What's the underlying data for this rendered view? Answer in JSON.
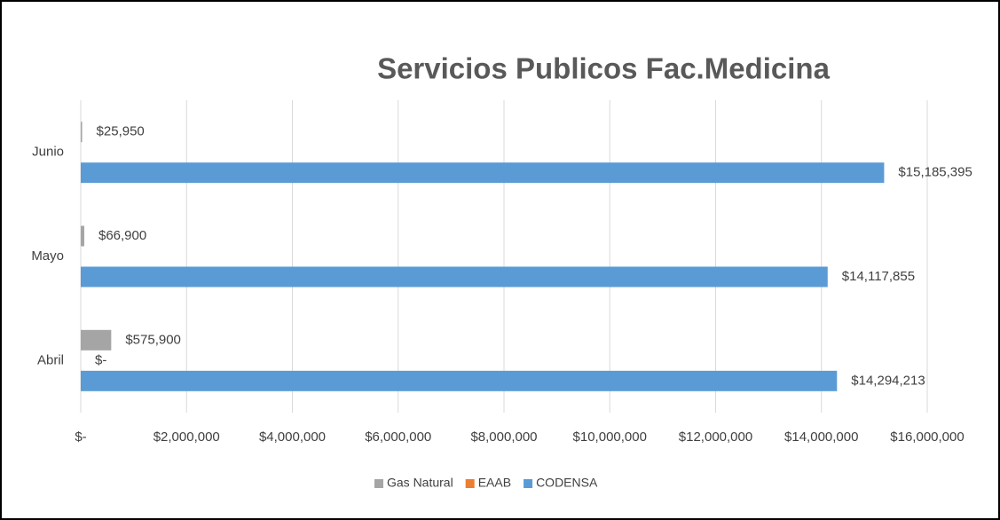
{
  "chart_data": {
    "type": "hbar",
    "title": "Servicios Publicos Fac.Medicina",
    "categories": [
      "Abril",
      "Mayo",
      "Junio"
    ],
    "series": [
      {
        "name": "Gas Natural",
        "color": "#a5a5a5",
        "values": [
          575900,
          66900,
          25950
        ],
        "value_labels": [
          "$575,900",
          "$66,900",
          "$25,950"
        ]
      },
      {
        "name": "EAAB",
        "color": "#ed7d31",
        "values": [
          0,
          null,
          null
        ],
        "value_labels": [
          "$-",
          null,
          null
        ]
      },
      {
        "name": "CODENSA",
        "color": "#5b9bd5",
        "values": [
          14294213,
          14117855,
          15185395
        ],
        "value_labels": [
          "$14,294,213",
          "$14,117,855",
          "$15,185,395"
        ]
      }
    ],
    "xlim": [
      0,
      16000000
    ],
    "xticks": [
      {
        "value": 0,
        "label": "$-"
      },
      {
        "value": 2000000,
        "label": "$2,000,000"
      },
      {
        "value": 4000000,
        "label": "$4,000,000"
      },
      {
        "value": 6000000,
        "label": "$6,000,000"
      },
      {
        "value": 8000000,
        "label": "$8,000,000"
      },
      {
        "value": 10000000,
        "label": "$10,000,000"
      },
      {
        "value": 12000000,
        "label": "$12,000,000"
      },
      {
        "value": 14000000,
        "label": "$14,000,000"
      },
      {
        "value": 16000000,
        "label": "$16,000,000"
      }
    ],
    "grid": true,
    "legend": "bottom"
  }
}
